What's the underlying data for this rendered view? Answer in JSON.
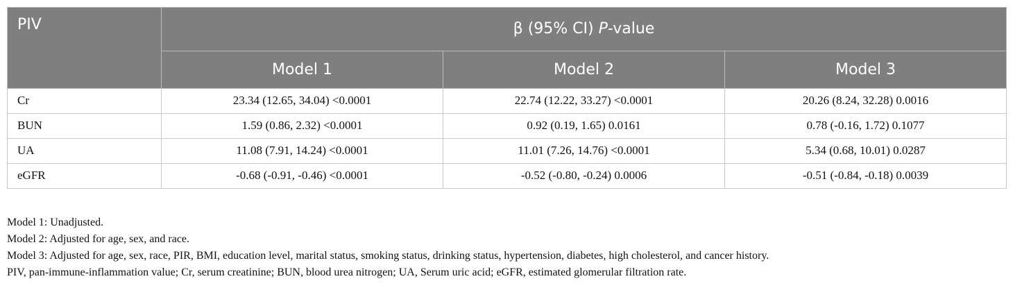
{
  "table": {
    "header_first_col": "PIV",
    "header_span": {
      "prefix": "β (95% CI) ",
      "italic": "P",
      "suffix": "-value"
    },
    "models": [
      "Model 1",
      "Model 2",
      "Model 3"
    ],
    "rows": [
      {
        "label": "Cr",
        "values": [
          "23.34 (12.65, 34.04) <0.0001",
          "22.74 (12.22, 33.27) <0.0001",
          "20.26 (8.24, 32.28) 0.0016"
        ]
      },
      {
        "label": "BUN",
        "values": [
          "1.59 (0.86, 2.32) <0.0001",
          "0.92 (0.19, 1.65) 0.0161",
          "0.78 (-0.16, 1.72) 0.1077"
        ]
      },
      {
        "label": "UA",
        "values": [
          "11.08 (7.91, 14.24) <0.0001",
          "11.01 (7.26, 14.76) <0.0001",
          "5.34 (0.68, 10.01) 0.0287"
        ]
      },
      {
        "label": "eGFR",
        "values": [
          "-0.68 (-0.91, -0.46) <0.0001",
          "-0.52 (-0.80, -0.24) 0.0006",
          "-0.51 (-0.84, -0.18) 0.0039"
        ]
      }
    ]
  },
  "notes": [
    "Model 1: Unadjusted.",
    "Model 2: Adjusted for age, sex, and race.",
    "Model 3: Adjusted for age, sex, race, PIR, BMI, education level, marital status, smoking status, drinking status, hypertension, diabetes, high cholesterol, and cancer history.",
    "PIV, pan-immune-inflammation value; Cr, serum creatinine; BUN, blood urea nitrogen; UA, Serum uric acid; eGFR, estimated glomerular filtration rate."
  ],
  "colors": {
    "header_bg": "#7f7f7f",
    "header_text": "#ffffff",
    "border": "#c8c8c8"
  }
}
